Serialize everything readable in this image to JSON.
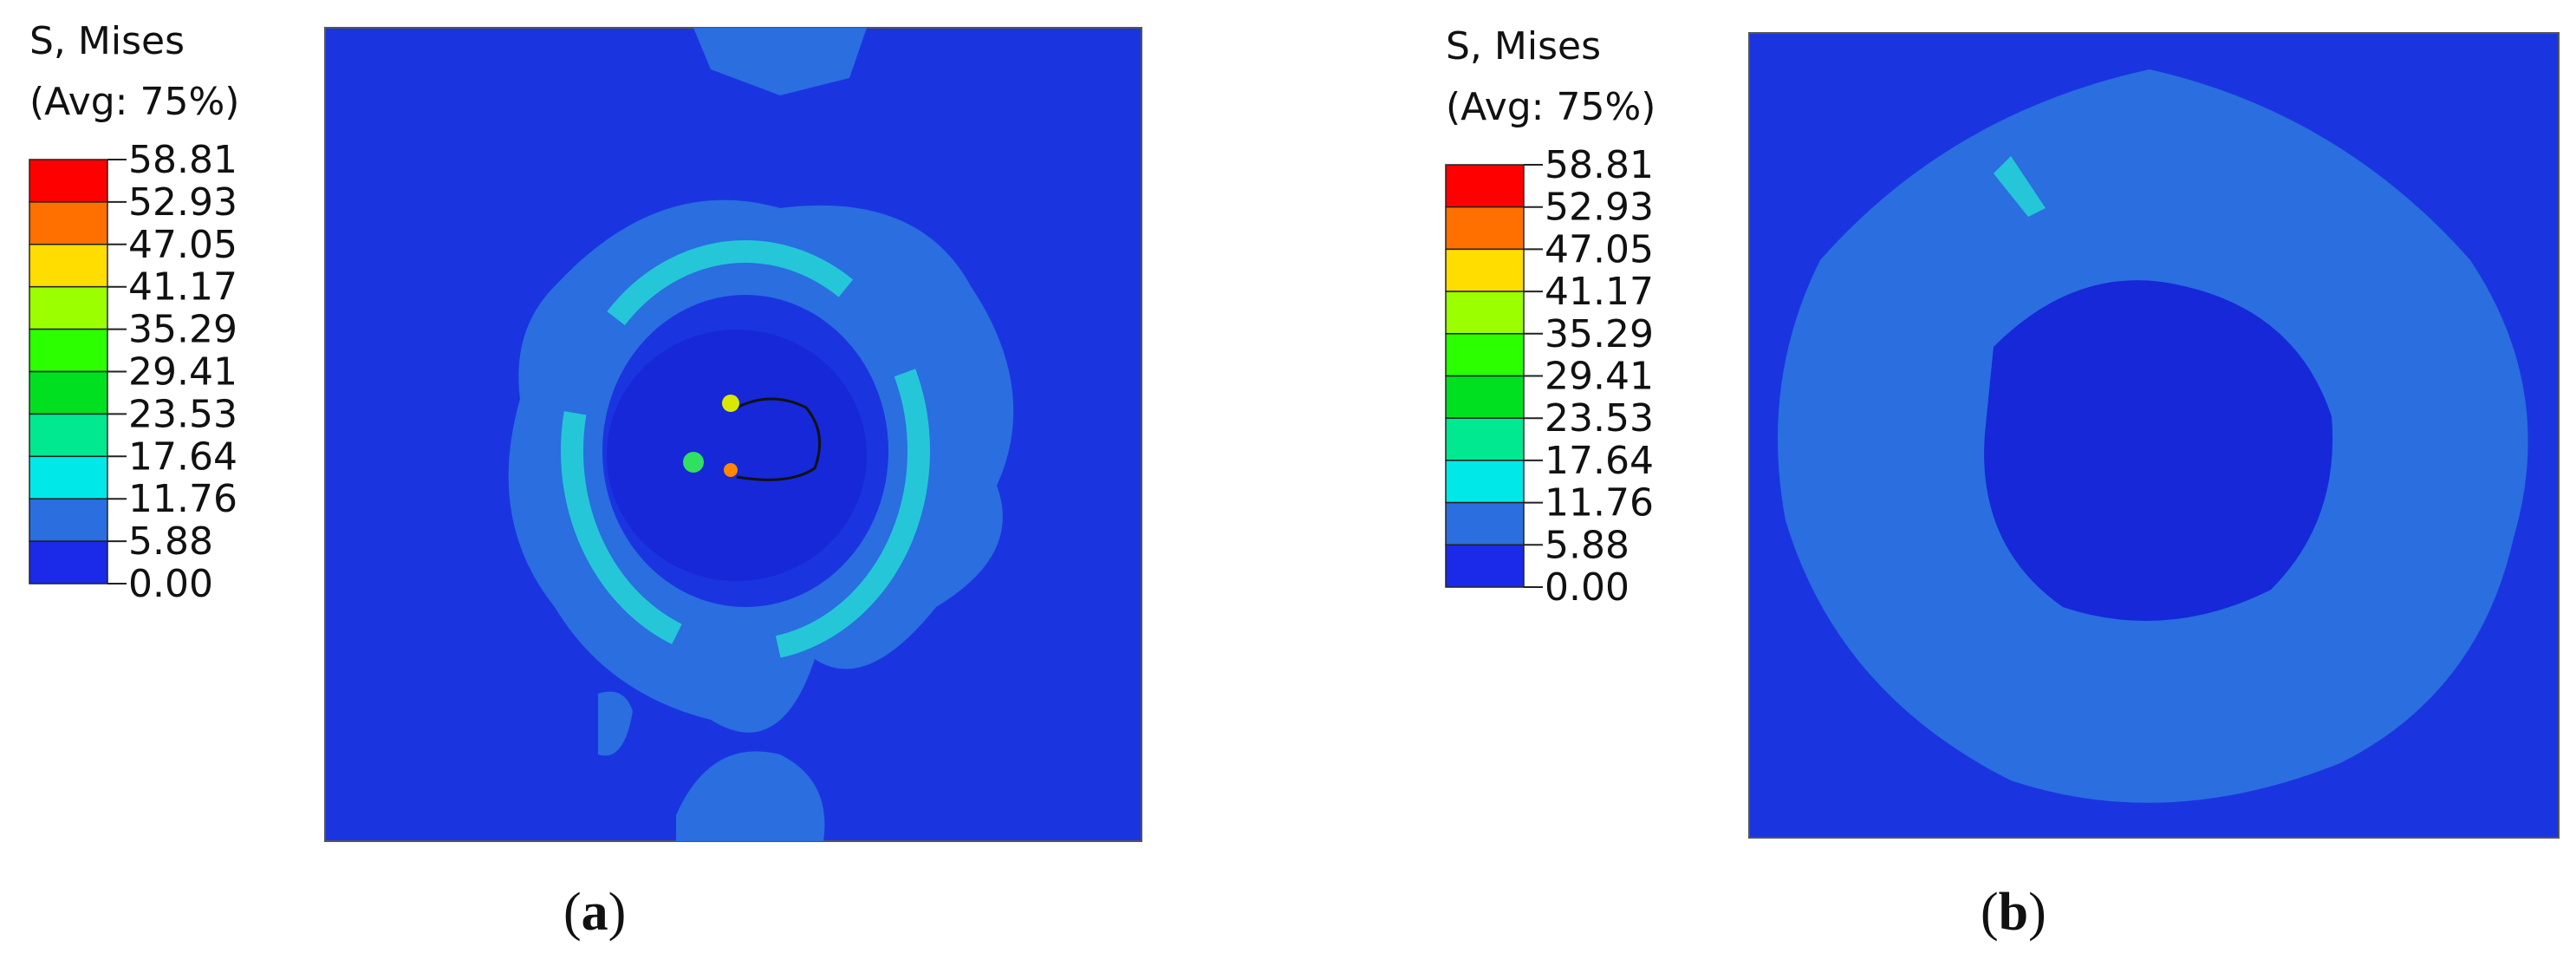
{
  "panels": [
    {
      "legend_title": "S, Mises",
      "legend_subtitle": "(Avg: 75%)",
      "legend_labels": [
        "58.81",
        "52.93",
        "47.05",
        "41.17",
        "35.29",
        "29.41",
        "23.53",
        "17.64",
        "11.76",
        "5.88",
        "0.00"
      ],
      "caption_open": "(",
      "caption_letter": "a",
      "caption_close": ")"
    },
    {
      "legend_title": "S, Mises",
      "legend_subtitle": "(Avg: 75%)",
      "legend_labels": [
        "58.81",
        "52.93",
        "47.05",
        "41.17",
        "35.29",
        "29.41",
        "23.53",
        "17.64",
        "11.76",
        "5.88",
        "0.00"
      ],
      "caption_open": "(",
      "caption_letter": "b",
      "caption_close": ")"
    }
  ]
}
